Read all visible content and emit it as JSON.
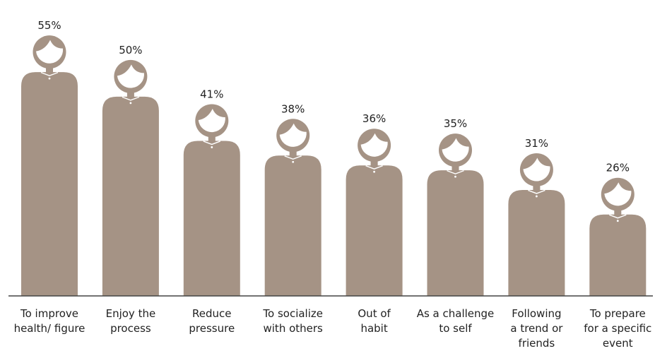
{
  "chart_data": {
    "type": "bar",
    "categories": [
      [
        "To improve",
        "health/ figure"
      ],
      [
        "Enjoy the",
        "process"
      ],
      [
        "Reduce",
        "pressure"
      ],
      [
        "To socialize",
        "with others"
      ],
      [
        "Out of",
        "habit"
      ],
      [
        "As a challenge",
        "to self"
      ],
      [
        "Following",
        "a trend or",
        "friends"
      ],
      [
        "To prepare",
        "for a specific",
        "event"
      ]
    ],
    "values": [
      55,
      50,
      41,
      38,
      36,
      35,
      31,
      26
    ],
    "value_labels": [
      "55%",
      "50%",
      "41%",
      "38%",
      "36%",
      "35%",
      "31%",
      "26%"
    ],
    "title": "",
    "xlabel": "",
    "ylabel": "",
    "grid": false,
    "legend": "none"
  },
  "colors": {
    "figure": "#a59385",
    "face": "#ffffff",
    "baseline": "#444444",
    "text": "#222222"
  }
}
